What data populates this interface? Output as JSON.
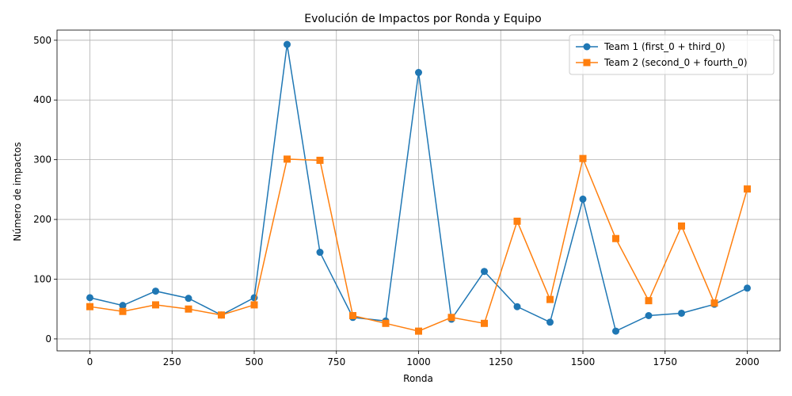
{
  "chart_data": {
    "type": "line",
    "title": "Evolución de Impactos por Ronda y Equipo",
    "xlabel": "Ronda",
    "ylabel": "Número de impactos",
    "xlim": [
      -100,
      2100
    ],
    "ylim": [
      -20,
      517
    ],
    "xticks": [
      0,
      250,
      500,
      750,
      1000,
      1250,
      1500,
      1750,
      2000
    ],
    "yticks": [
      0,
      100,
      200,
      300,
      400,
      500
    ],
    "grid": true,
    "legend_position": "top-right",
    "x": [
      0,
      100,
      200,
      300,
      400,
      500,
      600,
      700,
      800,
      900,
      1000,
      1100,
      1200,
      1300,
      1400,
      1500,
      1600,
      1700,
      1800,
      1900,
      2000
    ],
    "series": [
      {
        "name": "Team 1 (first_0 + third_0)",
        "color": "#1f77b4",
        "marker": "circle",
        "values": [
          69,
          56,
          80,
          68,
          40,
          69,
          493,
          145,
          36,
          30,
          446,
          33,
          113,
          54,
          28,
          234,
          13,
          39,
          43,
          58,
          85
        ]
      },
      {
        "name": "Team 2 (second_0 + fourth_0)",
        "color": "#ff7f0e",
        "marker": "square",
        "values": [
          54,
          46,
          57,
          50,
          40,
          57,
          301,
          299,
          39,
          26,
          13,
          36,
          26,
          197,
          66,
          302,
          168,
          64,
          189,
          60,
          251
        ]
      }
    ]
  }
}
